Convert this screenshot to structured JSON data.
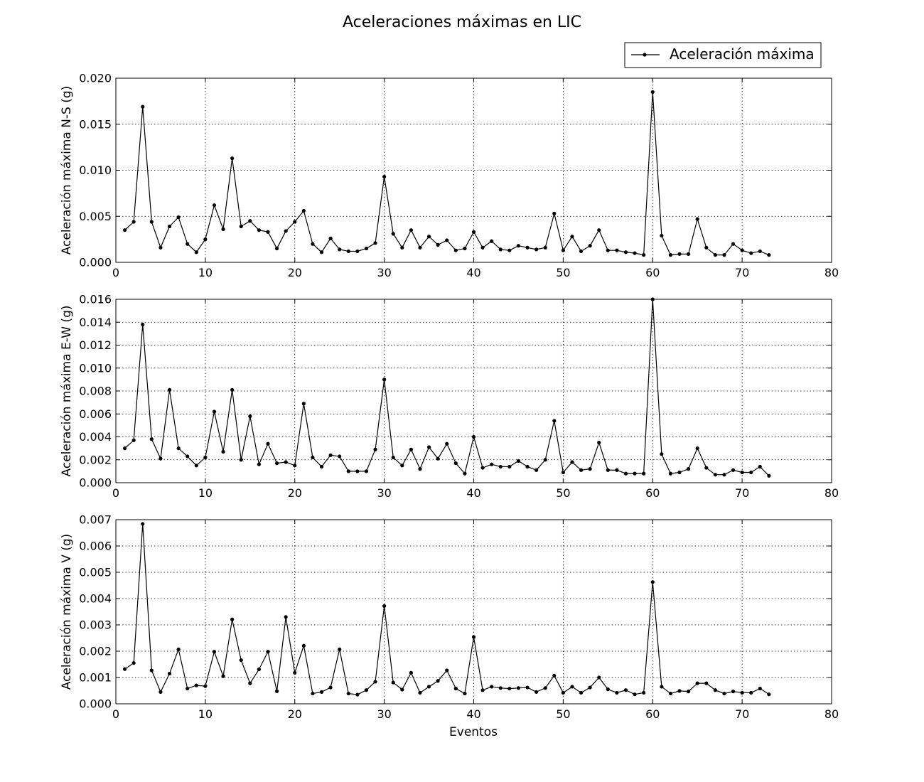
{
  "chart_data": {
    "type": "line",
    "title": "Aceleraciones máximas en LIC",
    "legend": {
      "label": "Aceleración máxima",
      "placement": "top-right"
    },
    "xlabel": "Eventos",
    "xlim": [
      0,
      80
    ],
    "xticks": [
      0,
      10,
      20,
      30,
      40,
      50,
      60,
      70,
      80
    ],
    "grid": true,
    "x": [
      1,
      2,
      3,
      4,
      5,
      6,
      7,
      8,
      9,
      10,
      11,
      12,
      13,
      14,
      15,
      16,
      17,
      18,
      19,
      20,
      21,
      22,
      23,
      24,
      25,
      26,
      27,
      28,
      29,
      30,
      31,
      32,
      33,
      34,
      35,
      36,
      37,
      38,
      39,
      40,
      41,
      42,
      43,
      44,
      45,
      46,
      47,
      48,
      49,
      50,
      51,
      52,
      53,
      54,
      55,
      56,
      57,
      58,
      59,
      60,
      61,
      62,
      63,
      64,
      65,
      66,
      67,
      68,
      69,
      70,
      71,
      72,
      73
    ],
    "panels": [
      {
        "ylabel": "Aceleración máxima N-S (g)",
        "ylim": [
          0,
          0.02
        ],
        "yticks": [
          "0.000",
          "0.005",
          "0.010",
          "0.015",
          "0.020"
        ],
        "series": [
          {
            "name": "Aceleración máxima",
            "values": [
              0.0035,
              0.0044,
              0.0169,
              0.0044,
              0.0016,
              0.0039,
              0.0049,
              0.002,
              0.0011,
              0.0025,
              0.0062,
              0.0036,
              0.0113,
              0.0039,
              0.0045,
              0.0035,
              0.0033,
              0.0015,
              0.0034,
              0.0044,
              0.0056,
              0.002,
              0.0011,
              0.0026,
              0.0014,
              0.0012,
              0.0012,
              0.0015,
              0.0021,
              0.0093,
              0.0031,
              0.0016,
              0.0035,
              0.0016,
              0.0028,
              0.0019,
              0.0024,
              0.0013,
              0.0015,
              0.0033,
              0.0016,
              0.0023,
              0.0014,
              0.0013,
              0.0018,
              0.0016,
              0.0014,
              0.0016,
              0.0053,
              0.0013,
              0.0028,
              0.0012,
              0.0018,
              0.0035,
              0.0013,
              0.0013,
              0.0011,
              0.001,
              0.0008,
              0.0185,
              0.0029,
              0.0008,
              0.0009,
              0.0009,
              0.0047,
              0.0016,
              0.0008,
              0.0008,
              0.002,
              0.0013,
              0.001,
              0.0012,
              0.0008
            ]
          }
        ]
      },
      {
        "ylabel": "Aceleración máxima E-W (g)",
        "ylim": [
          0,
          0.016
        ],
        "yticks": [
          "0.000",
          "0.002",
          "0.004",
          "0.006",
          "0.008",
          "0.010",
          "0.012",
          "0.014",
          "0.016"
        ],
        "series": [
          {
            "name": "Aceleración máxima",
            "values": [
              0.003,
              0.0037,
              0.0138,
              0.0038,
              0.0021,
              0.0081,
              0.003,
              0.0023,
              0.0015,
              0.0022,
              0.0062,
              0.0027,
              0.0081,
              0.002,
              0.0058,
              0.0016,
              0.0034,
              0.0017,
              0.0018,
              0.0015,
              0.0069,
              0.0022,
              0.0014,
              0.0024,
              0.0023,
              0.001,
              0.001,
              0.001,
              0.0029,
              0.009,
              0.0022,
              0.0015,
              0.0029,
              0.0012,
              0.0031,
              0.0021,
              0.0034,
              0.0017,
              0.0008,
              0.004,
              0.0013,
              0.0016,
              0.0014,
              0.0014,
              0.0019,
              0.0014,
              0.0011,
              0.002,
              0.0054,
              0.0009,
              0.0018,
              0.0011,
              0.0012,
              0.0035,
              0.0011,
              0.0011,
              0.0008,
              0.0008,
              0.0008,
              0.016,
              0.0025,
              0.0008,
              0.0009,
              0.0012,
              0.003,
              0.0013,
              0.0007,
              0.0007,
              0.0011,
              0.0009,
              0.0009,
              0.0014,
              0.0006
            ]
          }
        ]
      },
      {
        "ylabel": "Aceleración máxima V (g)",
        "ylim": [
          0,
          0.007
        ],
        "yticks": [
          "0.000",
          "0.001",
          "0.002",
          "0.003",
          "0.004",
          "0.005",
          "0.006",
          "0.007"
        ],
        "series": [
          {
            "name": "Aceleración máxima",
            "values": [
              0.00132,
              0.00155,
              0.00684,
              0.00127,
              0.00045,
              0.00115,
              0.00207,
              0.00058,
              0.0007,
              0.00067,
              0.00198,
              0.00105,
              0.00321,
              0.00166,
              0.00078,
              0.00131,
              0.00198,
              0.00048,
              0.0033,
              0.00118,
              0.00221,
              0.00039,
              0.00045,
              0.00062,
              0.00207,
              0.00039,
              0.00035,
              0.00052,
              0.00084,
              0.00372,
              0.00081,
              0.00054,
              0.00118,
              0.00042,
              0.00065,
              0.00087,
              0.00127,
              0.00058,
              0.00039,
              0.00254,
              0.00052,
              0.00065,
              0.0006,
              0.00058,
              0.0006,
              0.00062,
              0.00045,
              0.0006,
              0.00107,
              0.00042,
              0.00065,
              0.00042,
              0.00062,
              0.001,
              0.00055,
              0.00042,
              0.00052,
              0.00036,
              0.00042,
              0.00463,
              0.00065,
              0.00039,
              0.00049,
              0.00047,
              0.00078,
              0.00078,
              0.00052,
              0.00039,
              0.00047,
              0.00042,
              0.00042,
              0.00058,
              0.00036
            ]
          }
        ]
      }
    ]
  }
}
